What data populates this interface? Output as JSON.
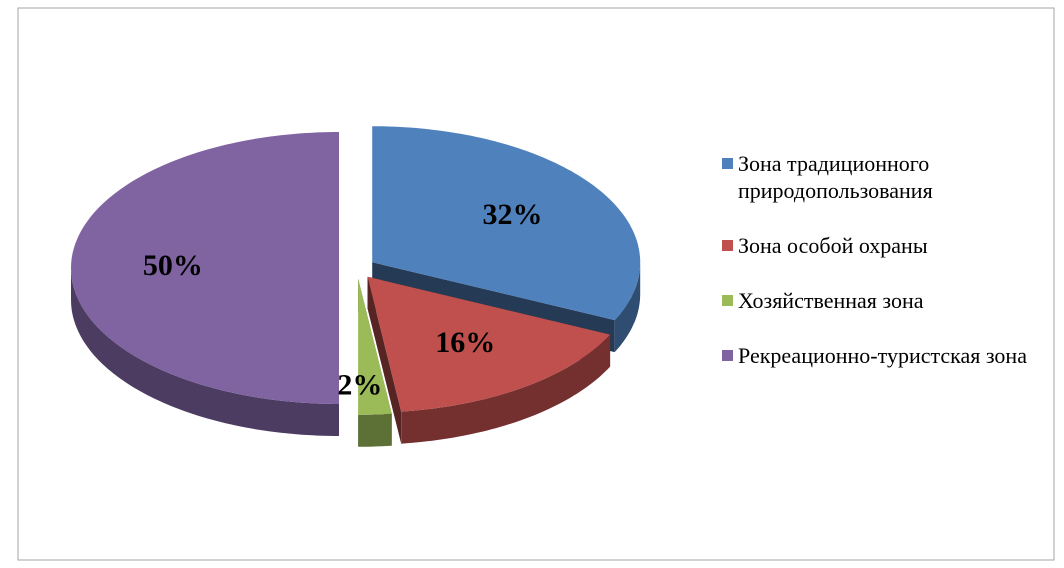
{
  "chart_data": {
    "type": "pie",
    "categories": [
      "Зона традиционного природопользования",
      "Зона особой охраны",
      "Хозяйственная зона",
      "Рекреационно-туристская зона"
    ],
    "values": [
      32,
      16,
      2,
      50
    ],
    "value_labels": [
      "32%",
      "16%",
      "2%",
      "50%"
    ],
    "colors": [
      "#4f81bd",
      "#c0504d",
      "#9bbb59",
      "#8064a2"
    ],
    "legend": "right"
  }
}
